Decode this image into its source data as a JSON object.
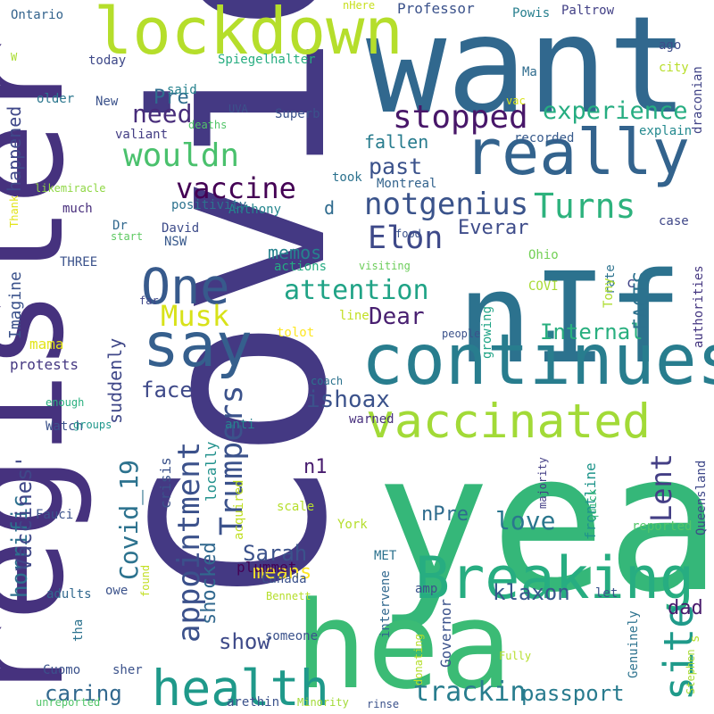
{
  "word_cloud": {
    "words": [
      {
        "text": "Covid",
        "color": "#443983"
      },
      {
        "text": "year",
        "color": "#35b779"
      },
      {
        "text": "register",
        "color": "#46327e"
      },
      {
        "text": "want",
        "color": "#31688e"
      },
      {
        "text": "nIf",
        "color": "#2c728e"
      },
      {
        "text": "hea",
        "color": "#3bbb75"
      },
      {
        "text": "continues",
        "color": "#287d8e"
      },
      {
        "text": "lockdown",
        "color": "#b5de2b"
      },
      {
        "text": "really",
        "color": "#33638d"
      },
      {
        "text": "Breaking",
        "color": "#27ad81"
      },
      {
        "text": "health",
        "color": "#1f998a"
      },
      {
        "text": "vaccinated",
        "color": "#a2da37"
      },
      {
        "text": "say",
        "color": "#355f8d"
      },
      {
        "text": "One",
        "color": "#375a8c"
      },
      {
        "text": "stopped",
        "color": "#481769"
      },
      {
        "text": "experience",
        "color": "#26ad81"
      },
      {
        "text": "wouldn",
        "color": "#4ac16d"
      },
      {
        "text": "need",
        "color": "#472c7a"
      },
      {
        "text": "vaccine",
        "color": "#440154"
      },
      {
        "text": "notgenius",
        "color": "#3a538b"
      },
      {
        "text": "Turns",
        "color": "#2db27d"
      },
      {
        "text": "Elon",
        "color": "#3e4989"
      },
      {
        "text": "attention",
        "color": "#20a386"
      },
      {
        "text": "Musk",
        "color": "#d8e219"
      },
      {
        "text": "appointment",
        "color": "#3b518b"
      },
      {
        "text": "Trumpers",
        "color": "#3b528b"
      },
      {
        "text": "site",
        "color": "#1f9a8a"
      },
      {
        "text": "ishoax",
        "color": "#3b528b"
      },
      {
        "text": "Internal",
        "color": "#29af7f"
      },
      {
        "text": "Dear",
        "color": "#481f70"
      },
      {
        "text": "love",
        "color": "#2a778e"
      },
      {
        "text": "Lent",
        "color": "#433e85"
      },
      {
        "text": "Covid_19",
        "color": "#2c728e"
      },
      {
        "text": "Sarah",
        "color": "#3b528b"
      },
      {
        "text": "means",
        "color": "#fde725"
      },
      {
        "text": "caring",
        "color": "#31688e"
      },
      {
        "text": "show",
        "color": "#3e4a89"
      },
      {
        "text": "trackin",
        "color": "#287d8e"
      },
      {
        "text": "passport",
        "color": "#297b8e"
      },
      {
        "text": "horrific",
        "color": "#2d708e"
      },
      {
        "text": "face",
        "color": "#3e4989"
      },
      {
        "text": "Vaccines'",
        "color": "#3f4788"
      },
      {
        "text": "shocked",
        "color": "#31688e"
      },
      {
        "text": "klaxon",
        "color": "#38588c"
      },
      {
        "text": "dad",
        "color": "#481a6c"
      },
      {
        "text": "past",
        "color": "#3b528b"
      },
      {
        "text": "fallen",
        "color": "#287c8e"
      },
      {
        "text": "memos",
        "color": "#26828e"
      },
      {
        "text": "Everar",
        "color": "#3e4c8a"
      },
      {
        "text": "FACTS",
        "color": "#2c718e"
      },
      {
        "text": "happened",
        "color": "#3f4889"
      },
      {
        "text": "Imagine",
        "color": "#3b528b"
      },
      {
        "text": "suddenly",
        "color": "#3f4788"
      },
      {
        "text": "Pre",
        "color": "#2f6c8e"
      },
      {
        "text": "d",
        "color": "#2f6b8e"
      },
      {
        "text": "n1",
        "color": "#481c6e"
      },
      {
        "text": "nPre",
        "color": "#2f6c8e"
      },
      {
        "text": "Anthony",
        "color": "#24868e"
      },
      {
        "text": "David",
        "color": "#3e4c8a"
      },
      {
        "text": "Dr",
        "color": "#31688e"
      },
      {
        "text": "positivity",
        "color": "#2c728e"
      },
      {
        "text": "Professor",
        "color": "#3b528b"
      },
      {
        "text": "Paltrow",
        "color": "#424086"
      },
      {
        "text": "Powis",
        "color": "#277f8e"
      },
      {
        "text": "Spiegelhalter",
        "color": "#27ad81"
      },
      {
        "text": "today",
        "color": "#3e4989"
      },
      {
        "text": "said",
        "color": "#26828e"
      },
      {
        "text": "older",
        "color": "#2a768e"
      },
      {
        "text": "New",
        "color": "#3b528b"
      },
      {
        "text": "valiant",
        "color": "#433d84"
      },
      {
        "text": "Superb",
        "color": "#3b528b"
      },
      {
        "text": "recorded",
        "color": "#375a8c"
      },
      {
        "text": "explain",
        "color": "#23898e"
      },
      {
        "text": "Montreal",
        "color": "#33638d"
      },
      {
        "text": "took",
        "color": "#2c728e"
      },
      {
        "text": "much",
        "color": "#472d7b"
      },
      {
        "text": "likemiracle",
        "color": "#8fd744"
      },
      {
        "text": "THREE",
        "color": "#3b528b"
      },
      {
        "text": "NSW",
        "color": "#38598c"
      },
      {
        "text": "actions",
        "color": "#25ab82"
      },
      {
        "text": "Ohio",
        "color": "#73d056"
      },
      {
        "text": "COVI",
        "color": "#a8db34"
      },
      {
        "text": "rate",
        "color": "#2c728e"
      },
      {
        "text": "c",
        "color": "#414487"
      },
      {
        "text": "case",
        "color": "#3f4788"
      },
      {
        "text": "authorities",
        "color": "#453781"
      },
      {
        "text": "Tony",
        "color": "#addc30"
      },
      {
        "text": "draconian",
        "color": "#414487"
      },
      {
        "text": "city",
        "color": "#b8de29"
      },
      {
        "text": "ago",
        "color": "#3e4c8a"
      },
      {
        "text": "Ma",
        "color": "#2f6c8e"
      },
      {
        "text": "Ontario",
        "color": "#33638d"
      },
      {
        "text": "nHere",
        "color": "#c8e020"
      },
      {
        "text": "W",
        "color": "#aadc32"
      },
      {
        "text": "Thank",
        "color": "#e2e418"
      },
      {
        "text": "start",
        "color": "#5ec962"
      },
      {
        "text": "food",
        "color": "#3b528b"
      },
      {
        "text": "visiting",
        "color": "#6ccd5a"
      },
      {
        "text": "far",
        "color": "#3f4788"
      },
      {
        "text": "line",
        "color": "#c2df23"
      },
      {
        "text": "people",
        "color": "#3b528b"
      },
      {
        "text": "growing",
        "color": "#20a486"
      },
      {
        "text": "tolot",
        "color": "#fde725"
      },
      {
        "text": "mama",
        "color": "#e2e418"
      },
      {
        "text": "protests",
        "color": "#453882"
      },
      {
        "text": "enough",
        "color": "#2ab07f"
      },
      {
        "text": "coach",
        "color": "#2c728e"
      },
      {
        "text": "warned",
        "color": "#472f7d"
      },
      {
        "text": "Watch",
        "color": "#3b528b"
      },
      {
        "text": "groups",
        "color": "#1f978b"
      },
      {
        "text": "anti",
        "color": "#26828e"
      },
      {
        "text": "crisis",
        "color": "#3b528b"
      },
      {
        "text": "locally",
        "color": "#21918c"
      },
      {
        "text": "acquired",
        "color": "#c0df25"
      },
      {
        "text": "scale",
        "color": "#b5de2b"
      },
      {
        "text": "majority",
        "color": "#433e85"
      },
      {
        "text": "frontline",
        "color": "#1f958b"
      },
      {
        "text": "Queensland",
        "color": "#3f4889"
      },
      {
        "text": "quick",
        "color": "#35b779"
      },
      {
        "text": "reported",
        "color": "#52c569"
      },
      {
        "text": "York",
        "color": "#b5de2b"
      },
      {
        "text": "Fauci",
        "color": "#3b528b"
      },
      {
        "text": "Canada",
        "color": "#3b528b"
      },
      {
        "text": "MET",
        "color": "#2c728e"
      },
      {
        "text": "plummet",
        "color": "#440154"
      },
      {
        "text": "adults",
        "color": "#31688e"
      },
      {
        "text": "owe",
        "color": "#3b528b"
      },
      {
        "text": "found",
        "color": "#c2df23"
      },
      {
        "text": "Bennett",
        "color": "#b5de2b"
      },
      {
        "text": "intervene",
        "color": "#31688e"
      },
      {
        "text": "amp",
        "color": "#3b528b"
      },
      {
        "text": "Governor",
        "color": "#3b528b"
      },
      {
        "text": "let",
        "color": "#3b528b"
      },
      {
        "text": "Genuinely",
        "color": "#2c728e"
      },
      {
        "text": "Stephen",
        "color": "#a8db34"
      },
      {
        "text": "tha",
        "color": "#2c728e"
      },
      {
        "text": "someone",
        "color": "#3b528b"
      },
      {
        "text": "Cuomo",
        "color": "#3b528b"
      },
      {
        "text": "sher",
        "color": "#3b528b"
      },
      {
        "text": "donating",
        "color": "#b5de2b"
      },
      {
        "text": "Fully",
        "color": "#b5de2b"
      },
      {
        "text": "s",
        "color": "#b5de2b"
      },
      {
        "text": "unreported",
        "color": "#52c569"
      },
      {
        "text": "arethin",
        "color": "#3b528b"
      },
      {
        "text": "Minority",
        "color": "#a2da37"
      },
      {
        "text": "rinse",
        "color": "#3b528b"
      },
      {
        "text": "UVA",
        "color": "#3b528b"
      },
      {
        "text": "deaths",
        "color": "#52c569"
      },
      {
        "text": "vac",
        "color": "#d8e219"
      }
    ]
  }
}
